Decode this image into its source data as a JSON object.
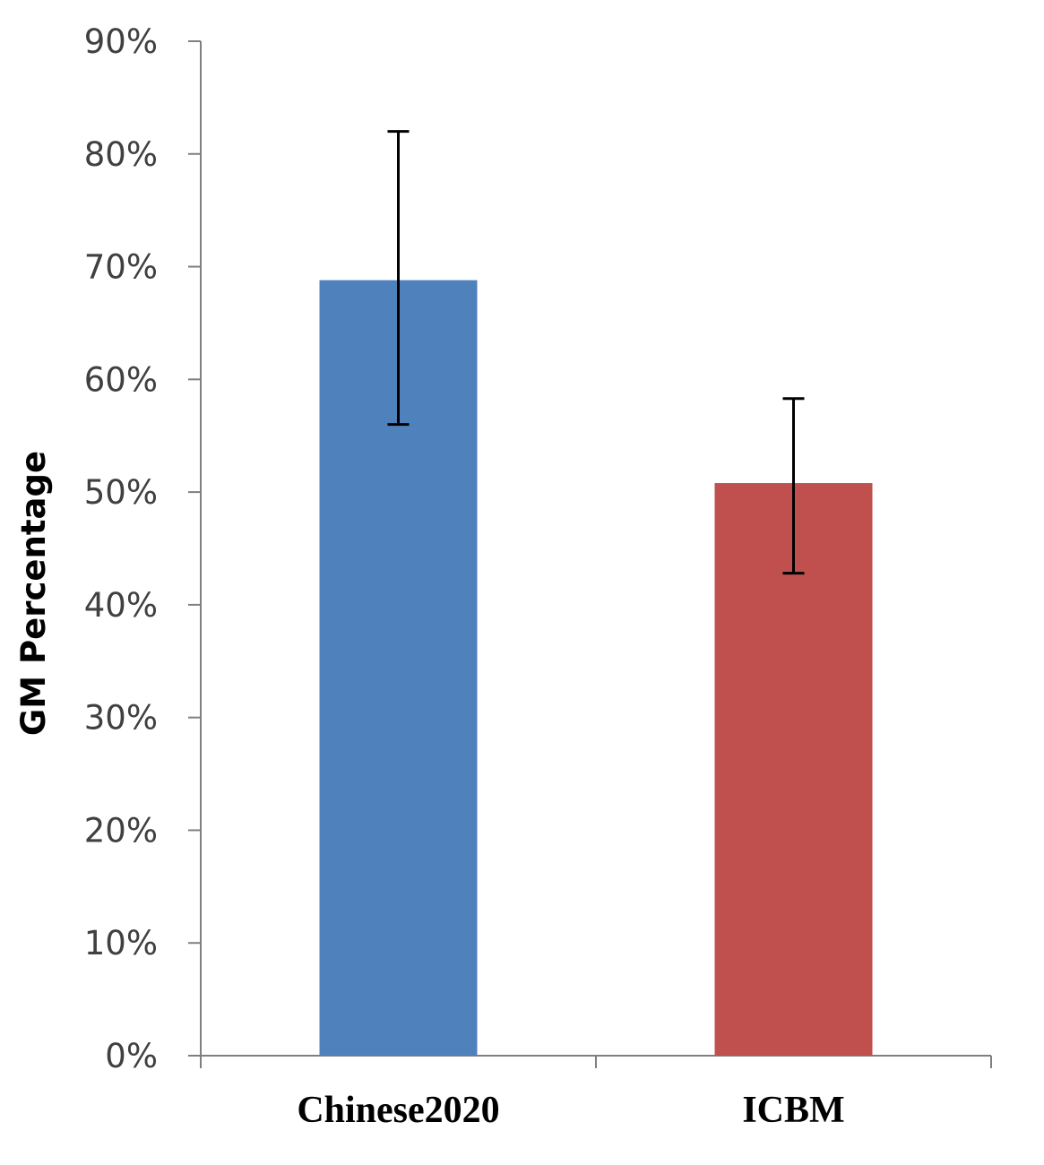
{
  "chart_data": {
    "type": "bar",
    "categories": [
      "Chinese2020",
      "ICBM"
    ],
    "values": [
      68.8,
      50.8
    ],
    "error": [
      {
        "low": 56.0,
        "high": 82.0
      },
      {
        "low": 42.8,
        "high": 58.3
      }
    ],
    "colors": [
      "#4F81BD",
      "#C0504D"
    ],
    "ylabel": "GM Percentage",
    "xlabel": "",
    "title": "",
    "ylim": [
      0,
      90
    ],
    "yticks": [
      0,
      10,
      20,
      30,
      40,
      50,
      60,
      70,
      80,
      90
    ],
    "ytick_labels": [
      "0%",
      "10%",
      "20%",
      "30%",
      "40%",
      "50%",
      "60%",
      "70%",
      "80%",
      "90%"
    ],
    "grid": false,
    "legend": "none"
  }
}
